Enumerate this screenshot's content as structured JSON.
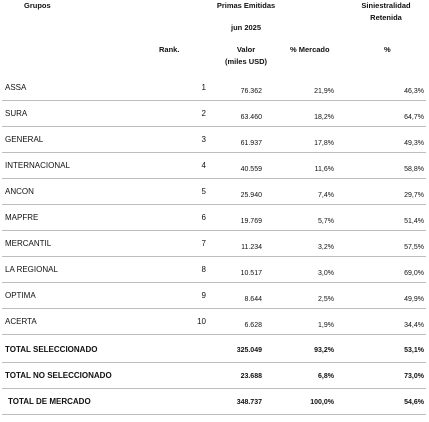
{
  "headers": {
    "grupos": "Grupos",
    "primas": "Primas Emitidas",
    "period": "jun 2025",
    "siniestralidad_1": "Siniestralidad",
    "siniestralidad_2": "Retenida",
    "rank": "Rank.",
    "valor_1": "Valor",
    "valor_2": "(miles USD)",
    "mercado": "% Mercado",
    "pct": "%"
  },
  "rows": [
    {
      "name": "ASSA",
      "rank": "1",
      "valor": "76.362",
      "mercado": "21,9%",
      "sin": "46,3%"
    },
    {
      "name": "SURA",
      "rank": "2",
      "valor": "63.460",
      "mercado": "18,2%",
      "sin": "64,7%"
    },
    {
      "name": "GENERAL",
      "rank": "3",
      "valor": "61.937",
      "mercado": "17,8%",
      "sin": "49,3%"
    },
    {
      "name": "INTERNACIONAL",
      "rank": "4",
      "valor": "40.559",
      "mercado": "11,6%",
      "sin": "58,8%"
    },
    {
      "name": "ANCON",
      "rank": "5",
      "valor": "25.940",
      "mercado": "7,4%",
      "sin": "29,7%"
    },
    {
      "name": "MAPFRE",
      "rank": "6",
      "valor": "19.769",
      "mercado": "5,7%",
      "sin": "51,4%"
    },
    {
      "name": "MERCANTIL",
      "rank": "7",
      "valor": "11.234",
      "mercado": "3,2%",
      "sin": "57,5%"
    },
    {
      "name": "LA REGIONAL",
      "rank": "8",
      "valor": "10.517",
      "mercado": "3,0%",
      "sin": "69,0%"
    },
    {
      "name": "OPTIMA",
      "rank": "9",
      "valor": "8.644",
      "mercado": "2,5%",
      "sin": "49,9%"
    },
    {
      "name": "ACERTA",
      "rank": "10",
      "valor": "6.628",
      "mercado": "1,9%",
      "sin": "34,4%"
    }
  ],
  "totals": [
    {
      "name": "TOTAL SELECCIONADO",
      "valor": "325.049",
      "mercado": "93,2%",
      "sin": "53,1%"
    },
    {
      "name": "TOTAL NO SELECCIONADO",
      "valor": "23.688",
      "mercado": "6,8%",
      "sin": "73,0%"
    },
    {
      "name": "TOTAL DE MERCADO",
      "valor": "348.737",
      "mercado": "100,0%",
      "sin": "54,6%"
    }
  ]
}
